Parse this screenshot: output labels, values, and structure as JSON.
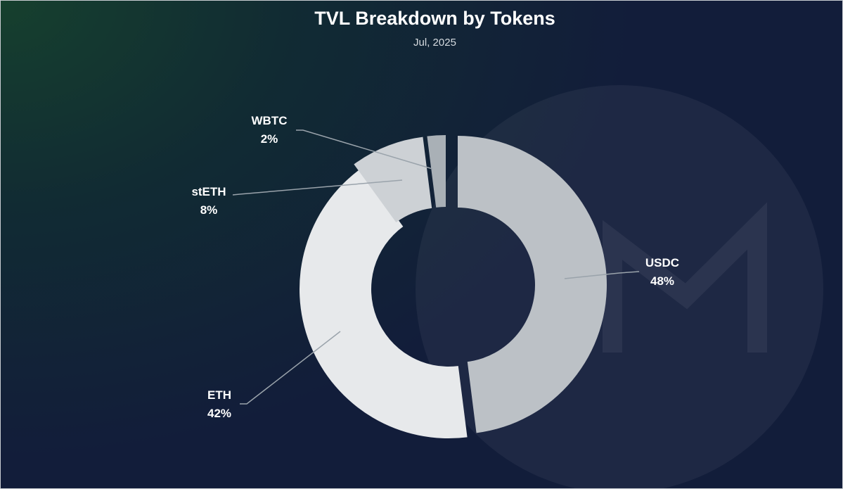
{
  "chart_title": "TVL Breakdown by Tokens",
  "chart_subtitle": "Jul, 2025",
  "colors": {
    "usdc": "#bcc1c6",
    "eth": "#e7e9eb",
    "steth": "#cdd1d5",
    "wbtc": "#a9b0b6",
    "leader_line": "#9aa3ab",
    "watermark": "#ffffff"
  },
  "chart_data": {
    "type": "pie",
    "style": "donut",
    "title": "TVL Breakdown by Tokens",
    "subtitle": "Jul, 2025",
    "slices": [
      {
        "name": "USDC",
        "value": 48,
        "label": "48%",
        "color": "#bcc1c6"
      },
      {
        "name": "ETH",
        "value": 42,
        "label": "42%",
        "color": "#e7e9eb"
      },
      {
        "name": "stETH",
        "value": 8,
        "label": "8%",
        "color": "#cdd1d5"
      },
      {
        "name": "WBTC",
        "value": 2,
        "label": "2%",
        "color": "#a9b0b6"
      }
    ],
    "legend": "none",
    "labels": "outside-with-leader-lines"
  }
}
